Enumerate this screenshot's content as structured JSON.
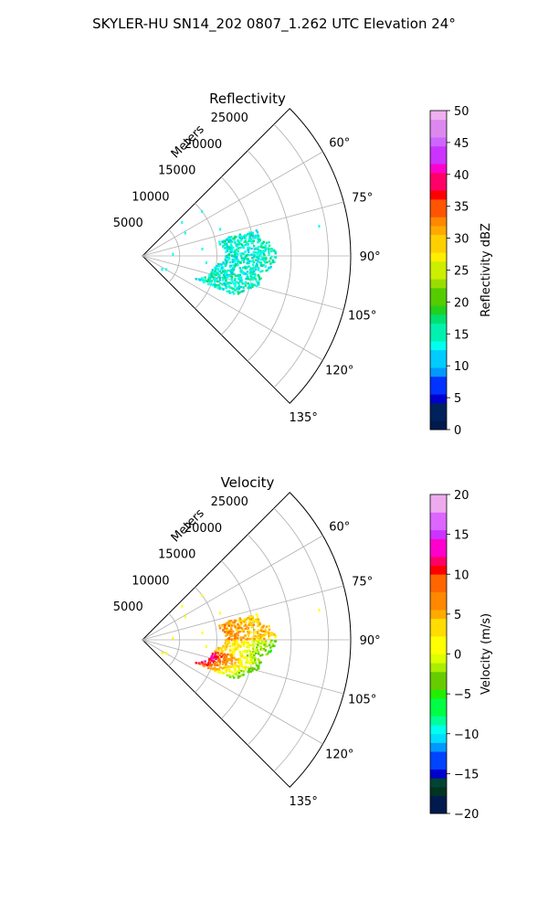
{
  "suptitle": "SKYLER-HU  SN14_202  0807_1.262 UTC Elevation 24°",
  "chart_data": [
    {
      "type": "polar-sector",
      "title": "Reflectivity",
      "radial_label": "Meters",
      "theta_range_deg": [
        45,
        135
      ],
      "r_max": 28000,
      "radial_ticks": [
        5000,
        10000,
        15000,
        20000,
        25000
      ],
      "radial_tick_labels": [
        "5000",
        "10000",
        "15000",
        "20000",
        "25000"
      ],
      "angular_ticks": [
        60,
        75,
        90,
        105,
        120,
        135
      ],
      "angular_tick_labels": [
        "60°",
        "75°",
        "90°",
        "105°",
        "120°",
        "135°"
      ],
      "grid": true,
      "colorbar": {
        "label": "Reflectivity dBZ",
        "min": 0,
        "max": 50,
        "ticks": [
          0,
          5,
          10,
          15,
          20,
          25,
          30,
          35,
          40,
          45,
          50
        ],
        "tick_labels": [
          "0",
          "5",
          "10",
          "15",
          "20",
          "25",
          "30",
          "35",
          "40",
          "45",
          "50"
        ]
      },
      "echo_region": {
        "description_values": "dominant reflectivity about 12-16 dBZ, arc of echoes from ~78° to ~112°",
        "typical_min": 10,
        "typical_max": 17
      }
    },
    {
      "type": "polar-sector",
      "title": "Velocity",
      "radial_label": "Meters",
      "theta_range_deg": [
        45,
        135
      ],
      "r_max": 28000,
      "radial_ticks": [
        5000,
        10000,
        15000,
        20000,
        25000
      ],
      "radial_tick_labels": [
        "5000",
        "10000",
        "15000",
        "20000",
        "25000"
      ],
      "angular_ticks": [
        60,
        75,
        90,
        105,
        120,
        135
      ],
      "angular_tick_labels": [
        "60°",
        "75°",
        "90°",
        "105°",
        "120°",
        "135°"
      ],
      "grid": true,
      "colorbar": {
        "label": "Velocity (m/s)",
        "min": -20,
        "max": 20,
        "ticks": [
          -20,
          -15,
          -10,
          -5,
          0,
          5,
          10,
          15,
          20
        ],
        "tick_labels": [
          "−20",
          "−15",
          "−10",
          "−5",
          "0",
          "5",
          "10",
          "15",
          "20"
        ]
      },
      "echo_region": {
        "typical_min": -6,
        "typical_max": 6
      }
    }
  ]
}
